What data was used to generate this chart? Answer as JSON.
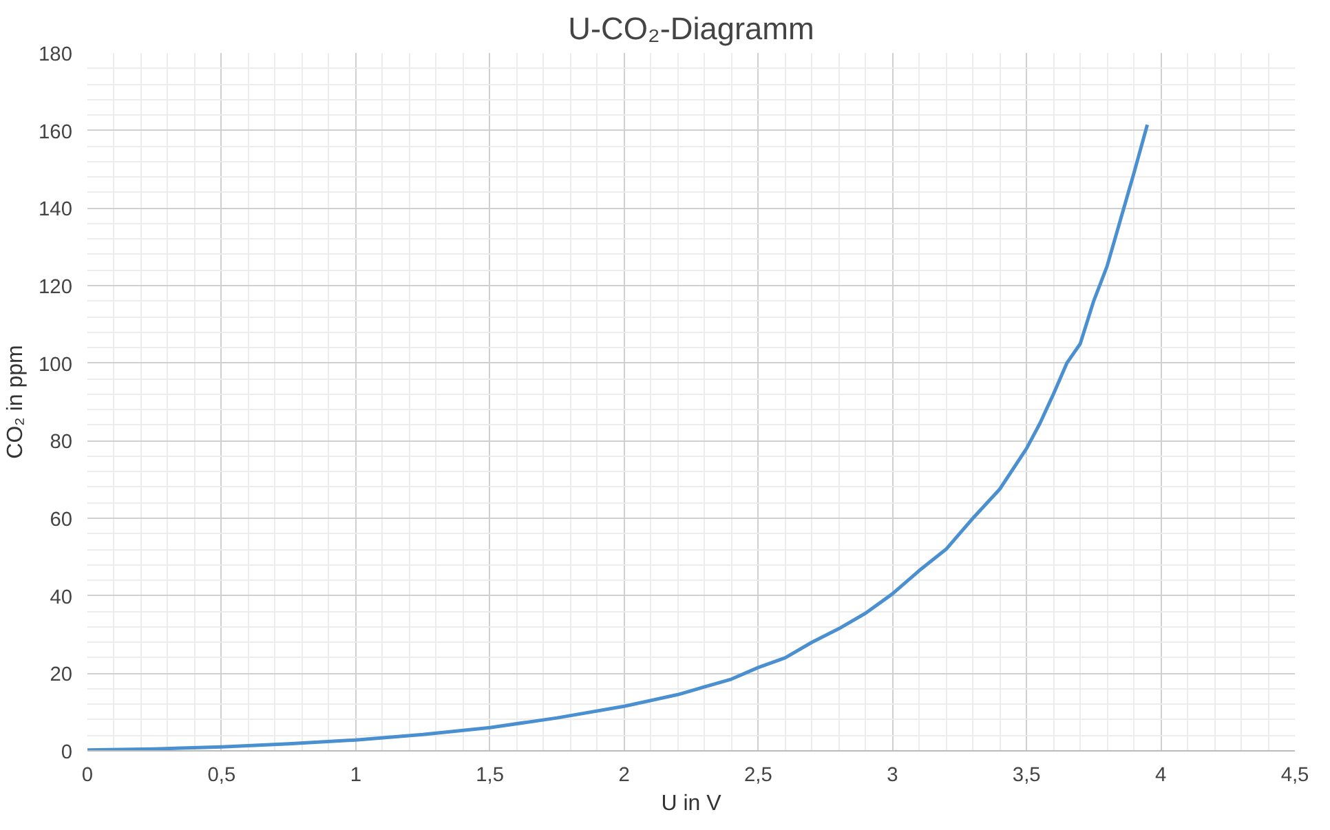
{
  "chart_data": {
    "type": "line",
    "title": "U-CO₂-Diagramm",
    "xlabel": "U in V",
    "ylabel": "CO₂ in ppm",
    "x": [
      0,
      0.25,
      0.5,
      0.75,
      1,
      1.25,
      1.5,
      1.75,
      2,
      2.2,
      2.4,
      2.5,
      2.6,
      2.7,
      2.8,
      2.9,
      3,
      3.1,
      3.2,
      3.3,
      3.4,
      3.5,
      3.55,
      3.6,
      3.65,
      3.7,
      3.75,
      3.8,
      3.85,
      3.9,
      3.95
    ],
    "series": [
      {
        "color": "#4a90d0",
        "values": [
          0.2,
          0.5,
          1,
          1.8,
          2.8,
          4.2,
          6,
          8.5,
          11.5,
          14.5,
          18.5,
          21.5,
          24,
          28,
          31.5,
          35.5,
          40.5,
          46.5,
          52,
          60,
          67.5,
          78,
          84.5,
          92,
          100,
          105,
          116,
          125,
          137,
          149,
          161.5
        ]
      }
    ],
    "xlim": [
      0,
      4.5
    ],
    "ylim": [
      0,
      180
    ],
    "xticks": [
      0,
      {
        "value": 0.5,
        "label": "0,5"
      },
      1,
      {
        "value": 1.5,
        "label": "1,5"
      },
      2,
      {
        "value": 2.5,
        "label": "2,5"
      },
      3,
      {
        "value": 3.5,
        "label": "3,5"
      },
      4,
      {
        "value": 4.5,
        "label": "4,5"
      }
    ],
    "yticks": [
      0,
      20,
      40,
      60,
      80,
      100,
      120,
      140,
      160,
      180
    ],
    "grid": true,
    "marker": "none",
    "line_style": "solid"
  }
}
